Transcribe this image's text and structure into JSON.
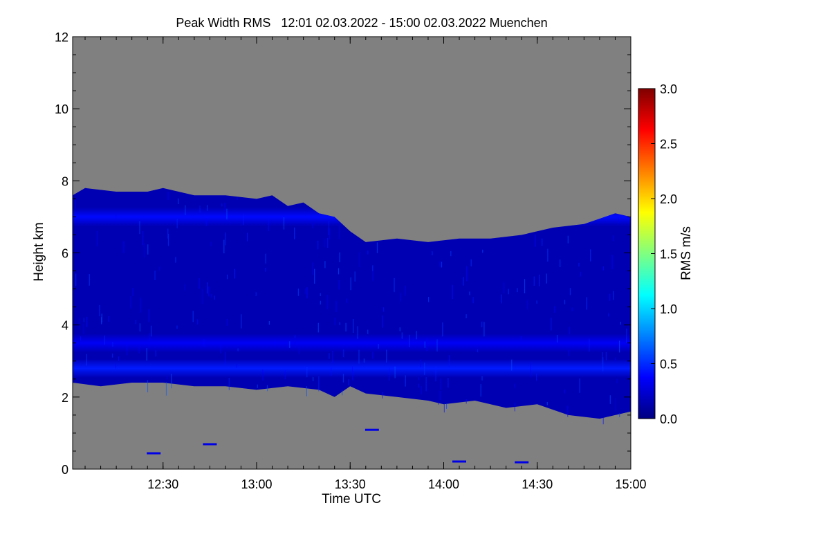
{
  "chart_data": {
    "type": "heatmap",
    "title": "Peak Width RMS   12:01 02.03.2022 - 15:00 02.03.2022 Muenchen",
    "xlabel": "Time UTC",
    "ylabel": "Height km",
    "xlim": [
      "12:01",
      "15:00"
    ],
    "ylim": [
      0,
      12
    ],
    "x_ticks": [
      "12:30",
      "13:00",
      "13:30",
      "14:00",
      "14:30",
      "15:00"
    ],
    "y_ticks": [
      "0",
      "2",
      "4",
      "6",
      "8",
      "10",
      "12"
    ],
    "colorbar": {
      "label": "RMS m/s",
      "range": [
        0.0,
        3.0
      ],
      "ticks": [
        "0.0",
        "0.5",
        "1.0",
        "1.5",
        "2.0",
        "2.5",
        "3.0"
      ],
      "colors": [
        "#000080",
        "#0000ff",
        "#0080ff",
        "#00ffff",
        "#80ff80",
        "#ffff00",
        "#ff8000",
        "#ff0000",
        "#800000"
      ]
    },
    "background_color": "#808080",
    "cloud_layer": {
      "top_km": [
        [
          "12:01",
          7.6
        ],
        [
          "12:05",
          7.8
        ],
        [
          "12:15",
          7.7
        ],
        [
          "12:25",
          7.7
        ],
        [
          "12:30",
          7.8
        ],
        [
          "12:40",
          7.6
        ],
        [
          "12:50",
          7.6
        ],
        [
          "13:00",
          7.5
        ],
        [
          "13:05",
          7.6
        ],
        [
          "13:10",
          7.3
        ],
        [
          "13:15",
          7.4
        ],
        [
          "13:20",
          7.1
        ],
        [
          "13:25",
          7.0
        ],
        [
          "13:30",
          6.6
        ],
        [
          "13:35",
          6.3
        ],
        [
          "13:45",
          6.4
        ],
        [
          "13:55",
          6.3
        ],
        [
          "14:05",
          6.4
        ],
        [
          "14:15",
          6.4
        ],
        [
          "14:25",
          6.5
        ],
        [
          "14:35",
          6.7
        ],
        [
          "14:45",
          6.8
        ],
        [
          "14:55",
          7.1
        ],
        [
          "15:00",
          7.0
        ]
      ],
      "base_km": [
        [
          "12:01",
          2.4
        ],
        [
          "12:10",
          2.3
        ],
        [
          "12:20",
          2.4
        ],
        [
          "12:30",
          2.4
        ],
        [
          "12:40",
          2.3
        ],
        [
          "12:50",
          2.3
        ],
        [
          "13:00",
          2.2
        ],
        [
          "13:10",
          2.3
        ],
        [
          "13:20",
          2.2
        ],
        [
          "13:25",
          2.0
        ],
        [
          "13:30",
          2.3
        ],
        [
          "13:35",
          2.1
        ],
        [
          "13:45",
          2.0
        ],
        [
          "13:55",
          1.9
        ],
        [
          "14:00",
          1.8
        ],
        [
          "14:10",
          1.9
        ],
        [
          "14:20",
          1.7
        ],
        [
          "14:30",
          1.8
        ],
        [
          "14:40",
          1.5
        ],
        [
          "14:50",
          1.4
        ],
        [
          "15:00",
          1.6
        ]
      ],
      "typical_rms": 0.15,
      "bands": [
        {
          "label": "upper streaks",
          "height_km": 7.0,
          "rms": 0.4
        },
        {
          "label": "mid band",
          "height_km": 3.5,
          "rms": 0.35
        },
        {
          "label": "base band",
          "height_km": 2.8,
          "rms": 0.45
        }
      ]
    },
    "scattered_echoes": [
      {
        "time": "12:27",
        "height_km": 0.45,
        "rms": 0.3
      },
      {
        "time": "12:45",
        "height_km": 0.7,
        "rms": 0.3
      },
      {
        "time": "13:37",
        "height_km": 1.1,
        "rms": 0.3
      },
      {
        "time": "14:05",
        "height_km": 0.22,
        "rms": 0.3
      },
      {
        "time": "14:25",
        "height_km": 0.2,
        "rms": 0.3
      }
    ]
  }
}
